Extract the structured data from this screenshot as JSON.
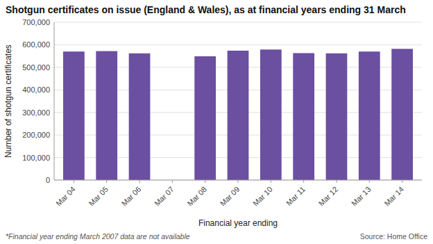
{
  "chart_data": {
    "type": "bar",
    "title": "Shotgun certificates on issue (England & Wales), as at financial years ending 31 March",
    "xlabel": "Financial year ending",
    "ylabel": "Number of shotgun certificates",
    "annotations": [
      "*Financial year ending March 2007 data are not available",
      "Source: Home Office"
    ],
    "categories": [
      "Mar 04",
      "Mar 05",
      "Mar 06",
      "Mar 07",
      "Mar 08",
      "Mar 09",
      "Mar 10",
      "Mar 11",
      "Mar 12",
      "Mar 13",
      "Mar 14"
    ],
    "values": [
      570000,
      572000,
      562000,
      null,
      549000,
      574000,
      579000,
      563000,
      562000,
      570000,
      582000
    ],
    "color": "#6b4fa0",
    "ylim": [
      0,
      700000
    ],
    "yticks": [
      0,
      {
        "value": 100000,
        "label": "100,000"
      },
      {
        "value": 200000,
        "label": "200,000"
      },
      {
        "value": 300000,
        "label": "300,000"
      },
      {
        "value": 400000,
        "label": "400,000"
      },
      {
        "value": 500000,
        "label": "500,000"
      },
      {
        "value": 600000,
        "label": "600,000"
      },
      {
        "value": 700000,
        "label": "700,000"
      }
    ],
    "grid": true
  }
}
